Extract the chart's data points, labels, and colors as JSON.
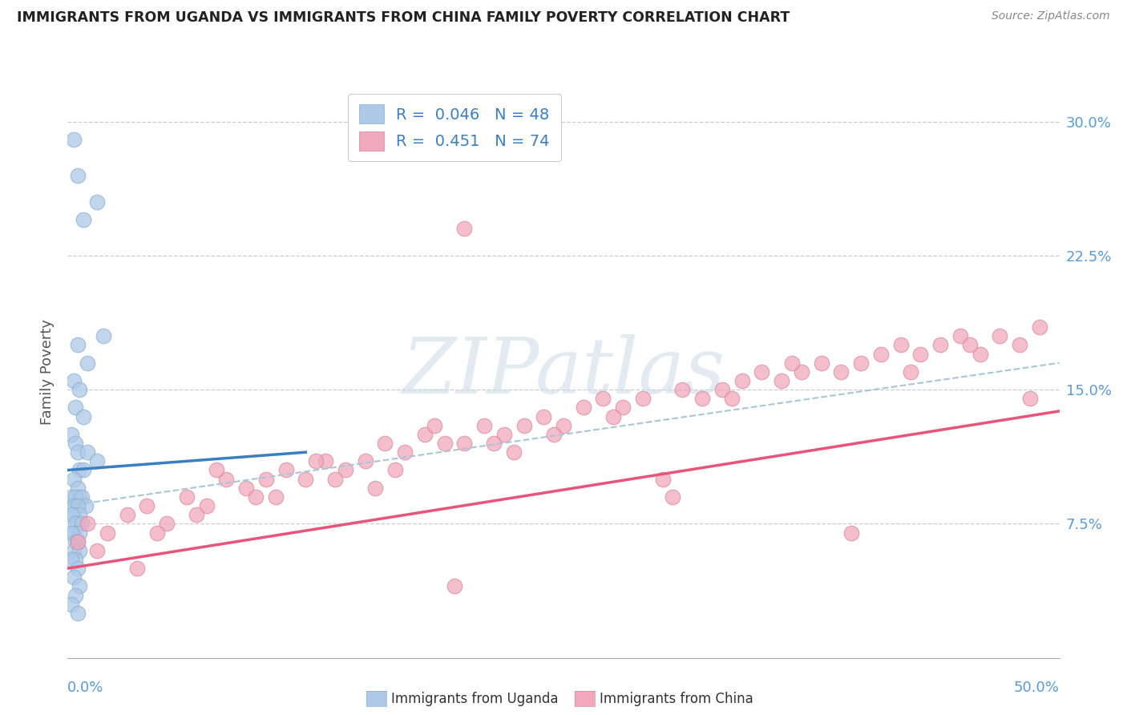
{
  "title": "IMMIGRANTS FROM UGANDA VS IMMIGRANTS FROM CHINA FAMILY POVERTY CORRELATION CHART",
  "source": "Source: ZipAtlas.com",
  "ylabel": "Family Poverty",
  "ytick_values": [
    7.5,
    15.0,
    22.5,
    30.0
  ],
  "xlim": [
    0,
    50
  ],
  "ylim": [
    0,
    32
  ],
  "legend_uganda": "R =  0.046   N = 48",
  "legend_china": "R =  0.451   N = 74",
  "uganda_color": "#adc9e8",
  "china_color": "#f2a8bc",
  "uganda_line_color": "#3a7fc1",
  "china_line_color": "#e8547a",
  "dashed_line_color": "#aac4d8",
  "watermark_color": "#ccdae8",
  "uganda_points_x": [
    0.3,
    0.5,
    1.5,
    0.8,
    1.8,
    0.5,
    1.0,
    0.3,
    0.6,
    0.4,
    0.8,
    0.2,
    0.4,
    0.5,
    1.0,
    1.5,
    0.6,
    0.8,
    0.3,
    0.5,
    0.2,
    0.6,
    0.4,
    0.7,
    0.3,
    0.9,
    0.5,
    0.3,
    0.6,
    0.2,
    0.5,
    0.4,
    0.7,
    0.3,
    0.6,
    0.2,
    0.4,
    0.5,
    0.3,
    0.6,
    0.4,
    0.2,
    0.5,
    0.3,
    0.6,
    0.4,
    0.2,
    0.5
  ],
  "uganda_points_y": [
    29.0,
    27.0,
    25.5,
    24.5,
    18.0,
    17.5,
    16.5,
    15.5,
    15.0,
    14.0,
    13.5,
    12.5,
    12.0,
    11.5,
    11.5,
    11.0,
    10.5,
    10.5,
    10.0,
    9.5,
    9.0,
    9.0,
    9.0,
    9.0,
    8.5,
    8.5,
    8.5,
    8.0,
    8.0,
    8.0,
    7.5,
    7.5,
    7.5,
    7.0,
    7.0,
    7.0,
    6.5,
    6.5,
    6.0,
    6.0,
    5.5,
    5.5,
    5.0,
    4.5,
    4.0,
    3.5,
    3.0,
    2.5
  ],
  "china_points_x": [
    0.5,
    1.0,
    2.0,
    3.0,
    4.0,
    5.0,
    6.0,
    7.0,
    8.0,
    9.0,
    10.0,
    11.0,
    12.0,
    13.0,
    14.0,
    15.0,
    16.0,
    17.0,
    18.0,
    19.0,
    20.0,
    21.0,
    22.0,
    23.0,
    24.0,
    25.0,
    26.0,
    27.0,
    28.0,
    29.0,
    30.0,
    31.0,
    32.0,
    33.0,
    34.0,
    35.0,
    36.0,
    37.0,
    38.0,
    39.0,
    40.0,
    41.0,
    42.0,
    43.0,
    44.0,
    45.0,
    46.0,
    47.0,
    48.0,
    49.0,
    3.5,
    6.5,
    9.5,
    12.5,
    15.5,
    18.5,
    21.5,
    24.5,
    27.5,
    30.5,
    33.5,
    36.5,
    39.5,
    42.5,
    45.5,
    48.5,
    1.5,
    4.5,
    7.5,
    10.5,
    13.5,
    16.5,
    19.5,
    22.5
  ],
  "china_points_y": [
    6.5,
    7.5,
    7.0,
    8.0,
    8.5,
    7.5,
    9.0,
    8.5,
    10.0,
    9.5,
    10.0,
    10.5,
    10.0,
    11.0,
    10.5,
    11.0,
    12.0,
    11.5,
    12.5,
    12.0,
    12.0,
    13.0,
    12.5,
    13.0,
    13.5,
    13.0,
    14.0,
    14.5,
    14.0,
    14.5,
    10.0,
    15.0,
    14.5,
    15.0,
    15.5,
    16.0,
    15.5,
    16.0,
    16.5,
    16.0,
    16.5,
    17.0,
    17.5,
    17.0,
    17.5,
    18.0,
    17.0,
    18.0,
    17.5,
    18.5,
    5.0,
    8.0,
    9.0,
    11.0,
    9.5,
    13.0,
    12.0,
    12.5,
    13.5,
    9.0,
    14.5,
    16.5,
    7.0,
    16.0,
    17.5,
    14.5,
    6.0,
    7.0,
    10.5,
    9.0,
    10.0,
    10.5,
    4.0,
    11.5
  ],
  "china_outlier_x": [
    20.0
  ],
  "china_outlier_y": [
    24.0
  ],
  "uganda_line_x0": 0.0,
  "uganda_line_y0": 10.5,
  "uganda_line_x1": 12.0,
  "uganda_line_y1": 11.5,
  "china_line_y0": 5.0,
  "china_line_y1": 13.8,
  "dashed_line_y0": 8.5,
  "dashed_line_y1": 16.5
}
